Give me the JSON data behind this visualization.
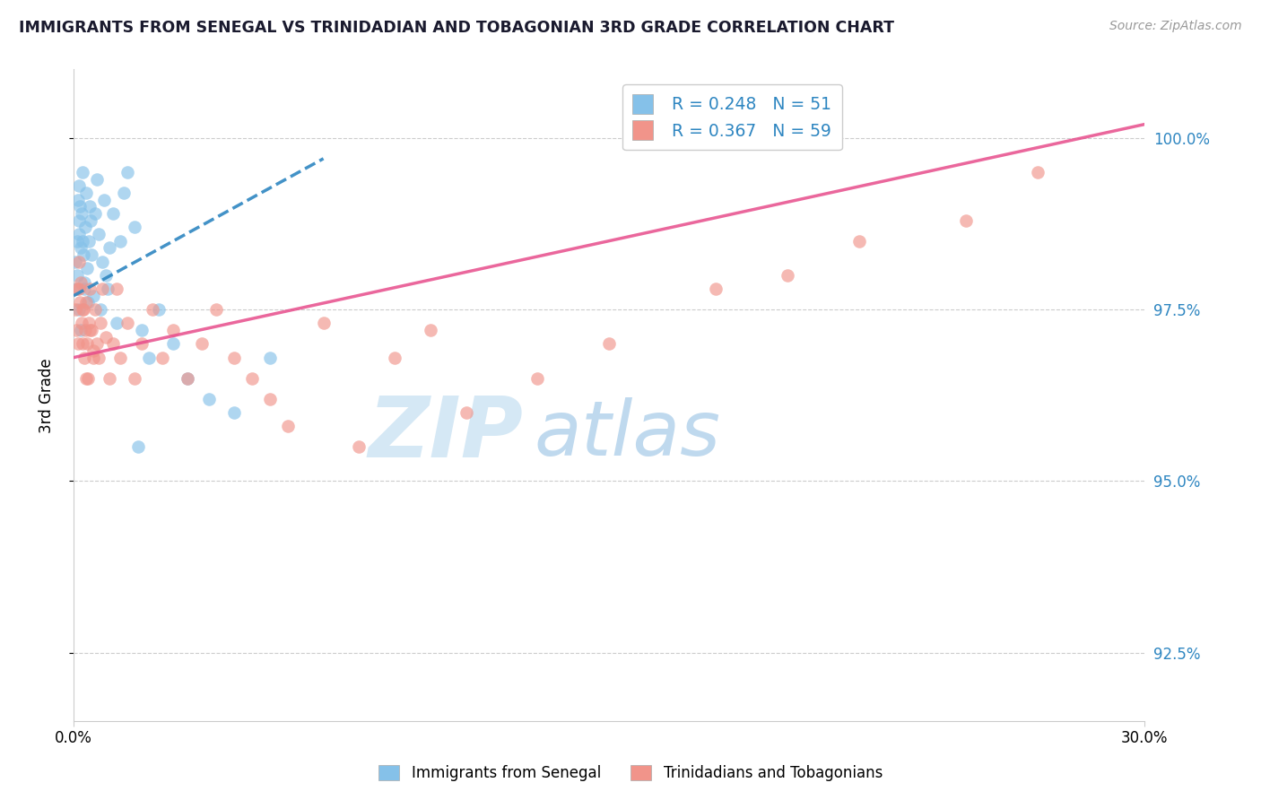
{
  "title": "IMMIGRANTS FROM SENEGAL VS TRINIDADIAN AND TOBAGONIAN 3RD GRADE CORRELATION CHART",
  "source": "Source: ZipAtlas.com",
  "ylabel_label": "3rd Grade",
  "legend_blue_label": "Immigrants from Senegal",
  "legend_pink_label": "Trinidadians and Tobagonians",
  "r_blue": "R = 0.248",
  "n_blue": "N = 51",
  "r_pink": "R = 0.367",
  "n_pink": "N = 59",
  "xlim": [
    0.0,
    30.0
  ],
  "ylim": [
    91.5,
    101.0
  ],
  "yticks": [
    92.5,
    95.0,
    97.5,
    100.0
  ],
  "blue_color": "#85C1E9",
  "pink_color": "#F1948A",
  "blue_line_color": "#2E86C1",
  "pink_line_color": "#E74C8B",
  "watermark_zip_color": "#D5E8F5",
  "watermark_atlas_color": "#BFD9EE",
  "blue_points_x": [
    0.05,
    0.08,
    0.1,
    0.12,
    0.14,
    0.15,
    0.16,
    0.18,
    0.2,
    0.22,
    0.25,
    0.28,
    0.3,
    0.32,
    0.35,
    0.38,
    0.4,
    0.42,
    0.45,
    0.48,
    0.5,
    0.55,
    0.6,
    0.65,
    0.7,
    0.75,
    0.8,
    0.85,
    0.9,
    0.95,
    1.0,
    1.1,
    1.2,
    1.3,
    1.4,
    1.5,
    1.7,
    1.9,
    2.1,
    2.4,
    2.8,
    3.2,
    3.8,
    4.5,
    5.5,
    0.1,
    0.15,
    0.2,
    0.3,
    0.25,
    1.8
  ],
  "blue_points_y": [
    98.2,
    97.8,
    98.5,
    99.1,
    98.8,
    99.3,
    98.6,
    99.0,
    98.4,
    98.9,
    99.5,
    98.3,
    97.9,
    98.7,
    99.2,
    98.1,
    97.6,
    98.5,
    99.0,
    98.8,
    98.3,
    97.7,
    98.9,
    99.4,
    98.6,
    97.5,
    98.2,
    99.1,
    98.0,
    97.8,
    98.4,
    98.9,
    97.3,
    98.5,
    99.2,
    99.5,
    98.7,
    97.2,
    96.8,
    97.5,
    97.0,
    96.5,
    96.2,
    96.0,
    96.8,
    98.0,
    97.5,
    97.2,
    97.8,
    98.5,
    95.5
  ],
  "pink_points_x": [
    0.05,
    0.08,
    0.1,
    0.12,
    0.15,
    0.18,
    0.2,
    0.22,
    0.25,
    0.28,
    0.3,
    0.32,
    0.35,
    0.38,
    0.4,
    0.42,
    0.45,
    0.5,
    0.55,
    0.6,
    0.65,
    0.7,
    0.75,
    0.8,
    0.9,
    1.0,
    1.1,
    1.2,
    1.3,
    1.5,
    1.7,
    1.9,
    2.2,
    2.5,
    2.8,
    3.2,
    3.6,
    4.0,
    4.5,
    5.0,
    5.5,
    6.0,
    7.0,
    8.0,
    9.0,
    10.0,
    11.0,
    13.0,
    15.0,
    18.0,
    20.0,
    22.0,
    25.0,
    27.0,
    0.15,
    0.25,
    0.35,
    0.45,
    0.55
  ],
  "pink_points_y": [
    97.5,
    97.2,
    97.8,
    97.0,
    98.2,
    97.6,
    97.9,
    97.3,
    97.0,
    97.5,
    96.8,
    97.2,
    97.6,
    97.0,
    96.5,
    97.3,
    97.8,
    97.2,
    96.9,
    97.5,
    97.0,
    96.8,
    97.3,
    97.8,
    97.1,
    96.5,
    97.0,
    97.8,
    96.8,
    97.3,
    96.5,
    97.0,
    97.5,
    96.8,
    97.2,
    96.5,
    97.0,
    97.5,
    96.8,
    96.5,
    96.2,
    95.8,
    97.3,
    95.5,
    96.8,
    97.2,
    96.0,
    96.5,
    97.0,
    97.8,
    98.0,
    98.5,
    98.8,
    99.5,
    97.8,
    97.5,
    96.5,
    97.2,
    96.8
  ],
  "blue_line_x0": 0.0,
  "blue_line_y0": 97.7,
  "blue_line_x1": 7.0,
  "blue_line_y1": 99.7,
  "pink_line_x0": 0.0,
  "pink_line_y0": 96.8,
  "pink_line_x1": 30.0,
  "pink_line_y1": 100.2
}
